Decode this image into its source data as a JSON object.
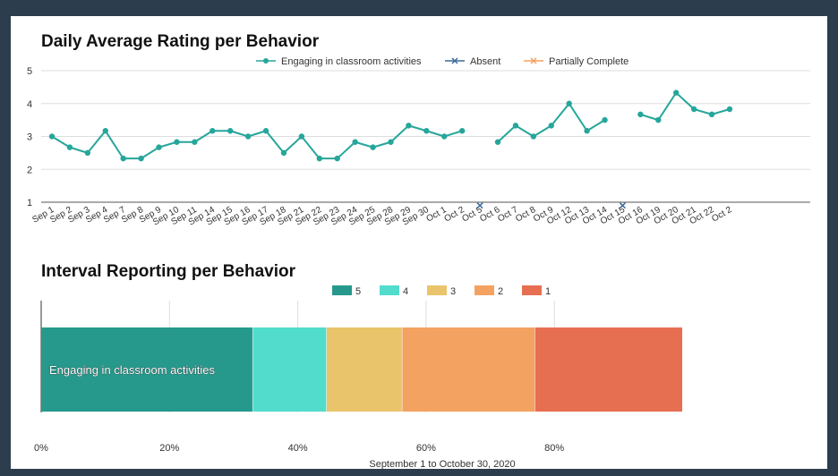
{
  "charts": {
    "line_title": "Daily Average Rating per Behavior",
    "bar_title": "Interval Reporting per Behavior",
    "bar_xlabel": "September 1 to October 30, 2020"
  },
  "chart_data": [
    {
      "type": "line",
      "title": "Daily Average Rating per Behavior",
      "categories": [
        "Sep 1",
        "Sep 2",
        "Sep 3",
        "Sep 4",
        "Sep 7",
        "Sep 8",
        "Sep 9",
        "Sep 10",
        "Sep 11",
        "Sep 14",
        "Sep 15",
        "Sep 16",
        "Sep 17",
        "Sep 18",
        "Sep 21",
        "Sep 22",
        "Sep 23",
        "Sep 24",
        "Sep 25",
        "Sep 28",
        "Sep 29",
        "Sep 30",
        "Oct 1",
        "Oct 2",
        "Oct 5",
        "Oct 6",
        "Oct 7",
        "Oct 8",
        "Oct 9",
        "Oct 12",
        "Oct 13",
        "Oct 14",
        "Oct 15",
        "Oct 16",
        "Oct 19",
        "Oct 20",
        "Oct 21",
        "Oct 22",
        "Oct 2"
      ],
      "series": [
        {
          "name": "Engaging in classroom activities",
          "color": "#26a69a",
          "marker": "circle",
          "values": [
            3,
            2.67,
            2.5,
            3.17,
            2.33,
            2.33,
            2.67,
            2.83,
            2.83,
            3.17,
            3.17,
            3,
            3.17,
            2.5,
            3,
            2.33,
            2.33,
            2.83,
            2.67,
            2.83,
            3.33,
            3.17,
            3,
            3.17,
            null,
            2.83,
            3.33,
            3,
            3.33,
            4,
            3.17,
            3.5,
            null,
            3.67,
            3.5,
            4.33,
            3.83,
            3.67,
            3.83
          ]
        },
        {
          "name": "Absent",
          "color": "#3d6b9c",
          "marker": "x",
          "values": [
            null,
            null,
            null,
            null,
            null,
            null,
            null,
            null,
            null,
            null,
            null,
            null,
            null,
            null,
            null,
            null,
            null,
            null,
            null,
            null,
            null,
            null,
            null,
            null,
            0.9,
            null,
            null,
            null,
            null,
            null,
            null,
            null,
            0.9,
            null,
            null,
            null,
            null,
            null,
            null
          ]
        },
        {
          "name": "Partially Complete",
          "color": "#f4a261",
          "marker": "x",
          "values": [
            null,
            null,
            null,
            null,
            null,
            null,
            null,
            null,
            null,
            null,
            null,
            null,
            null,
            null,
            null,
            null,
            null,
            null,
            null,
            null,
            null,
            null,
            null,
            null,
            null,
            null,
            null,
            null,
            null,
            null,
            null,
            null,
            null,
            null,
            null,
            null,
            null,
            null,
            null
          ]
        }
      ],
      "y_ticks": [
        1,
        2,
        3,
        4,
        5
      ],
      "ylim": [
        1,
        5
      ],
      "grid": true,
      "legend": "top"
    },
    {
      "type": "bar",
      "orientation": "horizontal-stacked-percent",
      "title": "Interval Reporting per Behavior",
      "categories": [
        "Engaging in classroom activities"
      ],
      "series": [
        {
          "name": "5",
          "color": "#26998c",
          "values": [
            33
          ]
        },
        {
          "name": "4",
          "color": "#52dccc",
          "values": [
            11.5
          ]
        },
        {
          "name": "3",
          "color": "#e9c46a",
          "values": [
            11.8
          ]
        },
        {
          "name": "2",
          "color": "#f4a261",
          "values": [
            20.7
          ]
        },
        {
          "name": "1",
          "color": "#e76f51",
          "values": [
            23
          ]
        }
      ],
      "x_ticks": [
        "0%",
        "20%",
        "40%",
        "60%",
        "80%"
      ],
      "xlim": [
        0,
        100
      ],
      "xlabel": "September 1 to October 30, 2020",
      "legend": "top"
    }
  ]
}
